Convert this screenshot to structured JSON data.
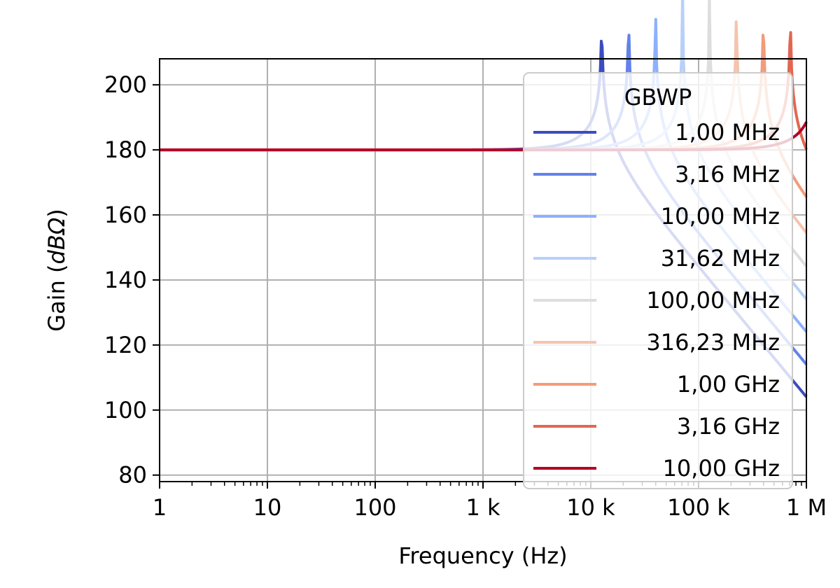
{
  "chart_data": {
    "type": "line",
    "title": "",
    "xlabel": "Frequency (Hz)",
    "ylabel": "Gain (",
    "ylabel_italic": "dBΩ",
    "ylabel_close": ")",
    "x_scale": "log",
    "xlim": [
      1,
      1000000
    ],
    "ylim": [
      78,
      208
    ],
    "grid": true,
    "legend_title": "GBWP",
    "legend_placement": "upper-right",
    "x_ticks": [
      {
        "value": 1,
        "label": "1"
      },
      {
        "value": 10,
        "label": "10"
      },
      {
        "value": 100,
        "label": "100"
      },
      {
        "value": 1000,
        "label": "1 k"
      },
      {
        "value": 10000,
        "label": "10 k"
      },
      {
        "value": 100000,
        "label": "100 k"
      },
      {
        "value": 1000000,
        "label": "1 M"
      }
    ],
    "y_ticks": [
      80,
      100,
      120,
      140,
      160,
      180,
      200
    ],
    "series": [
      {
        "name": "1,00 MHz",
        "color": "#3b4cc0",
        "gbw": 1000000.0
      },
      {
        "name": "3,16 MHz",
        "color": "#6282ea",
        "gbw": 3162300.0
      },
      {
        "name": "10,00 MHz",
        "color": "#8db0fe",
        "gbw": 10000000.0
      },
      {
        "name": "31,62 MHz",
        "color": "#b8d0f9",
        "gbw": 31623000.0
      },
      {
        "name": "100,00 MHz",
        "color": "#dddddd",
        "gbw": 100000000.0
      },
      {
        "name": "316,23 MHz",
        "color": "#f5c4ac",
        "gbw": 316230000.0
      },
      {
        "name": "1,00 GHz",
        "color": "#f39b7a",
        "gbw": 1000000000.0
      },
      {
        "name": "3,16 GHz",
        "color": "#e16751",
        "gbw": 3162300000.0
      },
      {
        "name": "10,00 GHz",
        "color": "#b40426",
        "gbw": 10000000000.0
      }
    ]
  }
}
